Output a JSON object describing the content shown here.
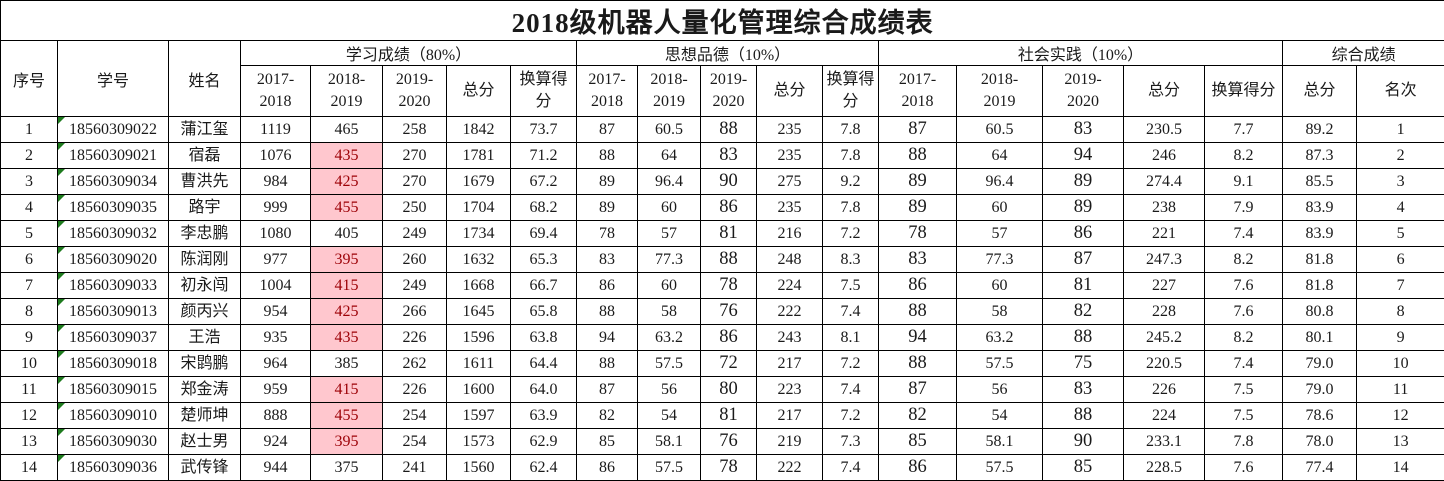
{
  "title": "2018级机器人量化管理综合成绩表",
  "header": {
    "index": "序号",
    "student_id": "学号",
    "name": "姓名",
    "groups": [
      {
        "label": "学习成绩（80%）"
      },
      {
        "label": "思想品德（10%）"
      },
      {
        "label": "社会实践（10%）"
      },
      {
        "label": "综合成绩"
      }
    ],
    "year_cols": [
      "2017-2018",
      "2018-2019",
      "2019-2020"
    ],
    "total": "总分",
    "converted": "换算得分",
    "rank": "名次"
  },
  "colors": {
    "highlight_bg": "#FFC7CE",
    "highlight_text": "#9C0006",
    "id_indicator_green": "#1e7b1e",
    "grid_border": "#000000"
  },
  "rows": [
    {
      "no": "1",
      "id": "18560309022",
      "name": "蒲江玺",
      "highlight": false,
      "study": [
        "1119",
        "465",
        "258",
        "1842",
        "73.7"
      ],
      "moral": [
        "87",
        "60.5",
        "88",
        "235",
        "7.8"
      ],
      "practice": [
        "87",
        "60.5",
        "83",
        "230.5",
        "7.7"
      ],
      "overall_total": "89.2",
      "rank": "1"
    },
    {
      "no": "2",
      "id": "18560309021",
      "name": "宿磊",
      "highlight": true,
      "study": [
        "1076",
        "435",
        "270",
        "1781",
        "71.2"
      ],
      "moral": [
        "88",
        "64",
        "83",
        "235",
        "7.8"
      ],
      "practice": [
        "88",
        "64",
        "94",
        "246",
        "8.2"
      ],
      "overall_total": "87.3",
      "rank": "2"
    },
    {
      "no": "3",
      "id": "18560309034",
      "name": "曹洪先",
      "highlight": true,
      "study": [
        "984",
        "425",
        "270",
        "1679",
        "67.2"
      ],
      "moral": [
        "89",
        "96.4",
        "90",
        "275",
        "9.2"
      ],
      "practice": [
        "89",
        "96.4",
        "89",
        "274.4",
        "9.1"
      ],
      "overall_total": "85.5",
      "rank": "3"
    },
    {
      "no": "4",
      "id": "18560309035",
      "name": "路宇",
      "highlight": true,
      "study": [
        "999",
        "455",
        "250",
        "1704",
        "68.2"
      ],
      "moral": [
        "89",
        "60",
        "86",
        "235",
        "7.8"
      ],
      "practice": [
        "89",
        "60",
        "89",
        "238",
        "7.9"
      ],
      "overall_total": "83.9",
      "rank": "4"
    },
    {
      "no": "5",
      "id": "18560309032",
      "name": "李忠鹏",
      "highlight": false,
      "study": [
        "1080",
        "405",
        "249",
        "1734",
        "69.4"
      ],
      "moral": [
        "78",
        "57",
        "81",
        "216",
        "7.2"
      ],
      "practice": [
        "78",
        "57",
        "86",
        "221",
        "7.4"
      ],
      "overall_total": "83.9",
      "rank": "5"
    },
    {
      "no": "6",
      "id": "18560309020",
      "name": "陈润刚",
      "highlight": true,
      "study": [
        "977",
        "395",
        "260",
        "1632",
        "65.3"
      ],
      "moral": [
        "83",
        "77.3",
        "88",
        "248",
        "8.3"
      ],
      "practice": [
        "83",
        "77.3",
        "87",
        "247.3",
        "8.2"
      ],
      "overall_total": "81.8",
      "rank": "6"
    },
    {
      "no": "7",
      "id": "18560309033",
      "name": "初永闯",
      "highlight": true,
      "study": [
        "1004",
        "415",
        "249",
        "1668",
        "66.7"
      ],
      "moral": [
        "86",
        "60",
        "78",
        "224",
        "7.5"
      ],
      "practice": [
        "86",
        "60",
        "81",
        "227",
        "7.6"
      ],
      "overall_total": "81.8",
      "rank": "7"
    },
    {
      "no": "8",
      "id": "18560309013",
      "name": "颜丙兴",
      "highlight": true,
      "study": [
        "954",
        "425",
        "266",
        "1645",
        "65.8"
      ],
      "moral": [
        "88",
        "58",
        "76",
        "222",
        "7.4"
      ],
      "practice": [
        "88",
        "58",
        "82",
        "228",
        "7.6"
      ],
      "overall_total": "80.8",
      "rank": "8"
    },
    {
      "no": "9",
      "id": "18560309037",
      "name": "王浩",
      "highlight": true,
      "study": [
        "935",
        "435",
        "226",
        "1596",
        "63.8"
      ],
      "moral": [
        "94",
        "63.2",
        "86",
        "243",
        "8.1"
      ],
      "practice": [
        "94",
        "63.2",
        "88",
        "245.2",
        "8.2"
      ],
      "overall_total": "80.1",
      "rank": "9"
    },
    {
      "no": "10",
      "id": "18560309018",
      "name": "宋鹍鹏",
      "highlight": false,
      "study": [
        "964",
        "385",
        "262",
        "1611",
        "64.4"
      ],
      "moral": [
        "88",
        "57.5",
        "72",
        "217",
        "7.2"
      ],
      "practice": [
        "88",
        "57.5",
        "75",
        "220.5",
        "7.4"
      ],
      "overall_total": "79.0",
      "rank": "10"
    },
    {
      "no": "11",
      "id": "18560309015",
      "name": "郑金涛",
      "highlight": true,
      "study": [
        "959",
        "415",
        "226",
        "1600",
        "64.0"
      ],
      "moral": [
        "87",
        "56",
        "80",
        "223",
        "7.4"
      ],
      "practice": [
        "87",
        "56",
        "83",
        "226",
        "7.5"
      ],
      "overall_total": "79.0",
      "rank": "11"
    },
    {
      "no": "12",
      "id": "18560309010",
      "name": "楚师坤",
      "highlight": true,
      "study": [
        "888",
        "455",
        "254",
        "1597",
        "63.9"
      ],
      "moral": [
        "82",
        "54",
        "81",
        "217",
        "7.2"
      ],
      "practice": [
        "82",
        "54",
        "88",
        "224",
        "7.5"
      ],
      "overall_total": "78.6",
      "rank": "12"
    },
    {
      "no": "13",
      "id": "18560309030",
      "name": "赵士男",
      "highlight": true,
      "study": [
        "924",
        "395",
        "254",
        "1573",
        "62.9"
      ],
      "moral": [
        "85",
        "58.1",
        "76",
        "219",
        "7.3"
      ],
      "practice": [
        "85",
        "58.1",
        "90",
        "233.1",
        "7.8"
      ],
      "overall_total": "78.0",
      "rank": "13"
    },
    {
      "no": "14",
      "id": "18560309036",
      "name": "武传锋",
      "highlight": false,
      "study": [
        "944",
        "375",
        "241",
        "1560",
        "62.4"
      ],
      "moral": [
        "86",
        "57.5",
        "78",
        "222",
        "7.4"
      ],
      "practice": [
        "86",
        "57.5",
        "85",
        "228.5",
        "7.6"
      ],
      "overall_total": "77.4",
      "rank": "14"
    }
  ]
}
